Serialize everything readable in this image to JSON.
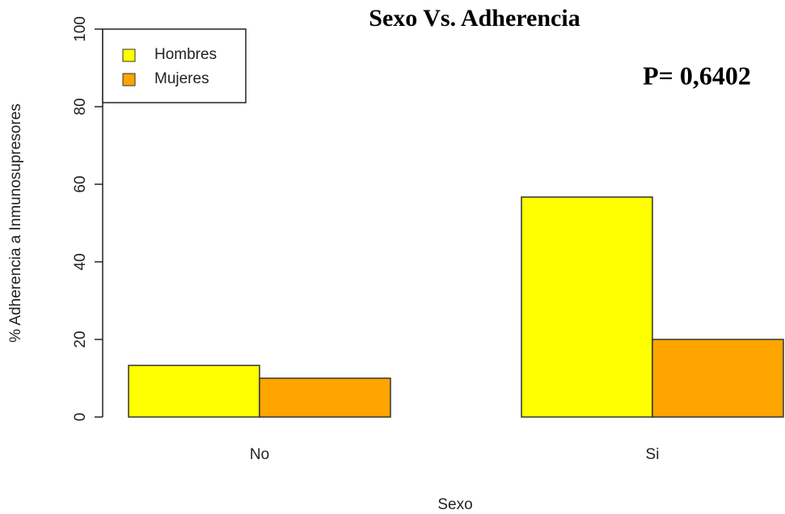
{
  "chart_data": {
    "type": "bar",
    "title": "Sexo Vs. Adherencia",
    "annotation": "P= 0,6402",
    "x_label": "Sexo",
    "y_label": "% Adherencia a Inmunosupresores",
    "categories": [
      "No",
      "Si"
    ],
    "series": [
      {
        "name": "Hombres",
        "color": "#ffff00",
        "values": [
          13.3,
          56.7
        ]
      },
      {
        "name": "Mujeres",
        "color": "#ffa500",
        "values": [
          10,
          20
        ]
      }
    ],
    "ylim": [
      0,
      100
    ],
    "yticks": [
      0,
      20,
      40,
      60,
      80,
      100
    ],
    "legend": "top-left"
  }
}
